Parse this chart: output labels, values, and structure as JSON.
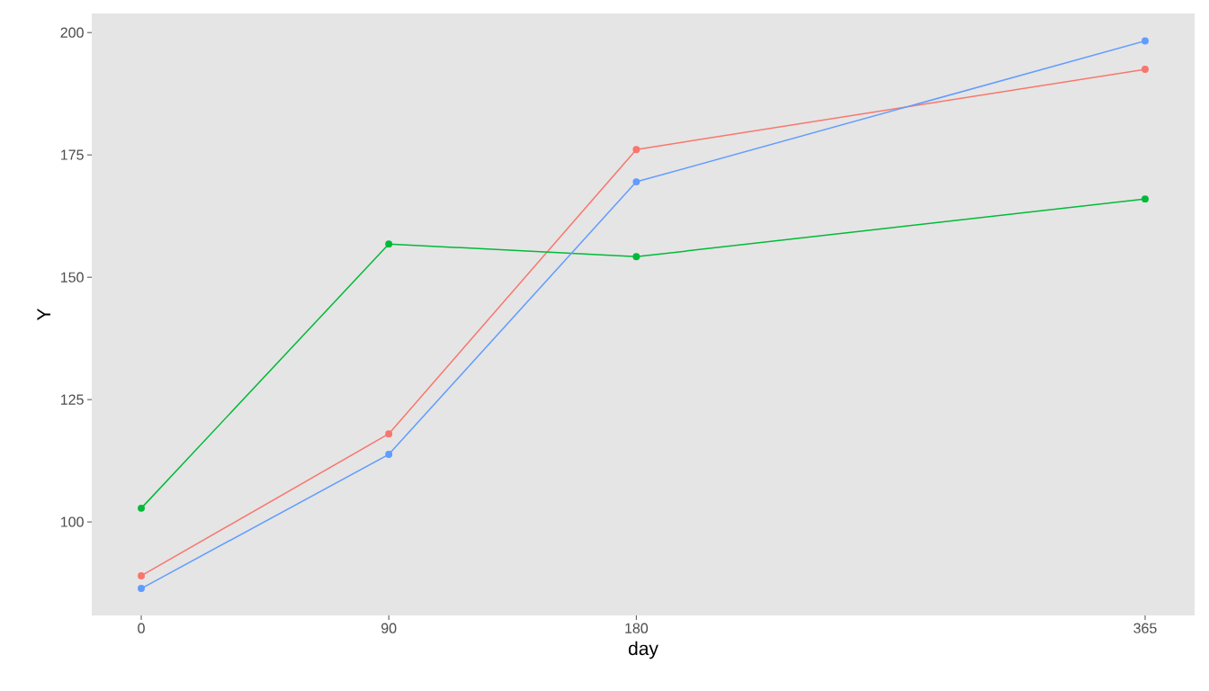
{
  "chart_data": {
    "type": "line",
    "xlabel": "day",
    "ylabel": "Y",
    "x": [
      0,
      90,
      180,
      365
    ],
    "series": [
      {
        "color": "#f8766d",
        "values": [
          89.0,
          118.0,
          176.1,
          192.5
        ]
      },
      {
        "color": "#00ba38",
        "values": [
          102.8,
          156.8,
          154.2,
          166.0
        ]
      },
      {
        "color": "#619cff",
        "values": [
          86.4,
          113.8,
          169.5,
          198.3
        ]
      }
    ],
    "xlim": [
      -18,
      383
    ],
    "ylim": [
      80.9,
      203.9
    ],
    "xticks": [
      0,
      90,
      180,
      365
    ],
    "yticks": [
      100,
      125,
      150,
      175,
      200
    ],
    "marker": "circle",
    "line_style": "solid"
  }
}
